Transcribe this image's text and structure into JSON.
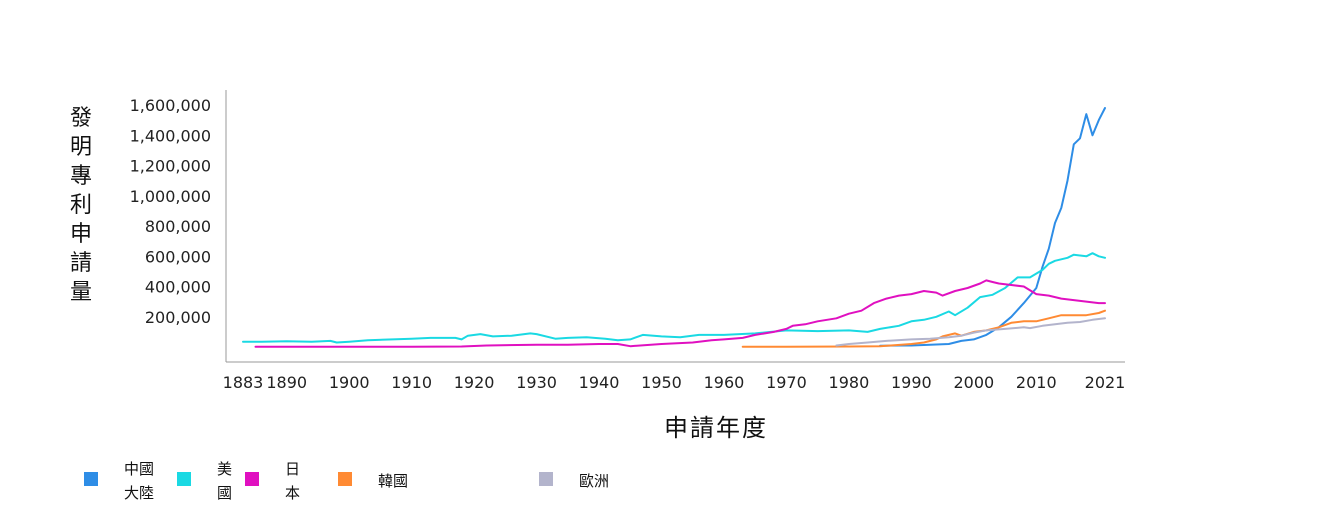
{
  "chart_data": {
    "type": "line",
    "title": "",
    "ylabel": "發明專利申請量",
    "xlabel": "申請年度",
    "xlim": [
      1883,
      2021
    ],
    "ylim": [
      0,
      1600000
    ],
    "x_ticks": [
      1883,
      1890,
      1900,
      1910,
      1920,
      1930,
      1940,
      1950,
      1960,
      1970,
      1980,
      1990,
      2000,
      2010,
      2021
    ],
    "y_ticks": [
      "200,000",
      "400,000",
      "600,000",
      "800,000",
      "1,000,000",
      "1,200,000",
      "1,400,000",
      "1,600,000"
    ],
    "y_tick_values": [
      200000,
      400000,
      600000,
      800000,
      1000000,
      1200000,
      1400000,
      1600000
    ],
    "legend_position": "bottom-left",
    "series": [
      {
        "name": "中國大陸",
        "legend_lines": [
          "中國",
          "大陸"
        ],
        "color": "#2e8de6",
        "points": [
          [
            1985,
            8000
          ],
          [
            1988,
            10000
          ],
          [
            1990,
            10000
          ],
          [
            1993,
            15000
          ],
          [
            1996,
            20000
          ],
          [
            1998,
            40000
          ],
          [
            2000,
            50000
          ],
          [
            2002,
            80000
          ],
          [
            2004,
            130000
          ],
          [
            2006,
            200000
          ],
          [
            2008,
            290000
          ],
          [
            2010,
            390000
          ],
          [
            2011,
            530000
          ],
          [
            2012,
            650000
          ],
          [
            2013,
            820000
          ],
          [
            2014,
            920000
          ],
          [
            2015,
            1100000
          ],
          [
            2016,
            1340000
          ],
          [
            2017,
            1380000
          ],
          [
            2018,
            1540000
          ],
          [
            2019,
            1400000
          ],
          [
            2020,
            1500000
          ],
          [
            2021,
            1580000
          ]
        ]
      },
      {
        "name": "美國",
        "legend_lines": [
          "美",
          "國"
        ],
        "color": "#1ad9e3",
        "points": [
          [
            1883,
            35000
          ],
          [
            1886,
            35000
          ],
          [
            1890,
            38000
          ],
          [
            1894,
            35000
          ],
          [
            1897,
            40000
          ],
          [
            1898,
            30000
          ],
          [
            1900,
            35000
          ],
          [
            1903,
            45000
          ],
          [
            1910,
            55000
          ],
          [
            1913,
            60000
          ],
          [
            1917,
            60000
          ],
          [
            1918,
            50000
          ],
          [
            1919,
            75000
          ],
          [
            1921,
            85000
          ],
          [
            1923,
            70000
          ],
          [
            1926,
            75000
          ],
          [
            1929,
            90000
          ],
          [
            1930,
            85000
          ],
          [
            1933,
            55000
          ],
          [
            1935,
            60000
          ],
          [
            1938,
            65000
          ],
          [
            1941,
            55000
          ],
          [
            1943,
            45000
          ],
          [
            1945,
            50000
          ],
          [
            1947,
            80000
          ],
          [
            1950,
            70000
          ],
          [
            1953,
            65000
          ],
          [
            1956,
            80000
          ],
          [
            1960,
            80000
          ],
          [
            1965,
            90000
          ],
          [
            1970,
            110000
          ],
          [
            1975,
            105000
          ],
          [
            1980,
            110000
          ],
          [
            1983,
            100000
          ],
          [
            1985,
            120000
          ],
          [
            1988,
            140000
          ],
          [
            1990,
            170000
          ],
          [
            1992,
            180000
          ],
          [
            1994,
            200000
          ],
          [
            1996,
            235000
          ],
          [
            1997,
            210000
          ],
          [
            1999,
            260000
          ],
          [
            2001,
            330000
          ],
          [
            2003,
            345000
          ],
          [
            2005,
            390000
          ],
          [
            2007,
            460000
          ],
          [
            2009,
            460000
          ],
          [
            2011,
            510000
          ],
          [
            2012,
            550000
          ],
          [
            2013,
            570000
          ],
          [
            2015,
            590000
          ],
          [
            2016,
            610000
          ],
          [
            2018,
            600000
          ],
          [
            2019,
            620000
          ],
          [
            2020,
            600000
          ],
          [
            2021,
            590000
          ]
        ]
      },
      {
        "name": "日本",
        "legend_lines": [
          "日",
          "本"
        ],
        "color": "#e010c0",
        "points": [
          [
            1885,
            1000
          ],
          [
            1900,
            1000
          ],
          [
            1910,
            2000
          ],
          [
            1918,
            3000
          ],
          [
            1922,
            10000
          ],
          [
            1930,
            15000
          ],
          [
            1935,
            15000
          ],
          [
            1940,
            20000
          ],
          [
            1943,
            20000
          ],
          [
            1945,
            5000
          ],
          [
            1950,
            20000
          ],
          [
            1955,
            30000
          ],
          [
            1958,
            45000
          ],
          [
            1960,
            50000
          ],
          [
            1963,
            60000
          ],
          [
            1965,
            80000
          ],
          [
            1968,
            100000
          ],
          [
            1970,
            120000
          ],
          [
            1971,
            140000
          ],
          [
            1973,
            150000
          ],
          [
            1975,
            170000
          ],
          [
            1978,
            190000
          ],
          [
            1980,
            220000
          ],
          [
            1982,
            240000
          ],
          [
            1984,
            290000
          ],
          [
            1986,
            320000
          ],
          [
            1988,
            340000
          ],
          [
            1990,
            350000
          ],
          [
            1992,
            370000
          ],
          [
            1994,
            360000
          ],
          [
            1995,
            340000
          ],
          [
            1997,
            370000
          ],
          [
            1999,
            390000
          ],
          [
            2001,
            420000
          ],
          [
            2002,
            440000
          ],
          [
            2003,
            430000
          ],
          [
            2004,
            420000
          ],
          [
            2006,
            410000
          ],
          [
            2008,
            400000
          ],
          [
            2010,
            350000
          ],
          [
            2012,
            340000
          ],
          [
            2014,
            320000
          ],
          [
            2016,
            310000
          ],
          [
            2018,
            300000
          ],
          [
            2020,
            290000
          ],
          [
            2021,
            290000
          ]
        ]
      },
      {
        "name": "韓國",
        "legend_lines": [
          "韓國"
        ],
        "color": "#ff8a33",
        "points": [
          [
            1963,
            1000
          ],
          [
            1970,
            1000
          ],
          [
            1980,
            3000
          ],
          [
            1985,
            5000
          ],
          [
            1990,
            20000
          ],
          [
            1992,
            30000
          ],
          [
            1994,
            50000
          ],
          [
            1995,
            70000
          ],
          [
            1997,
            90000
          ],
          [
            1998,
            75000
          ],
          [
            2000,
            100000
          ],
          [
            2002,
            110000
          ],
          [
            2004,
            130000
          ],
          [
            2006,
            160000
          ],
          [
            2008,
            170000
          ],
          [
            2010,
            170000
          ],
          [
            2012,
            190000
          ],
          [
            2014,
            210000
          ],
          [
            2016,
            210000
          ],
          [
            2018,
            210000
          ],
          [
            2020,
            225000
          ],
          [
            2021,
            240000
          ]
        ]
      },
      {
        "name": "歐洲",
        "legend_lines": [
          "歐洲"
        ],
        "color": "#b3b4cc",
        "points": [
          [
            1978,
            10000
          ],
          [
            1980,
            20000
          ],
          [
            1983,
            30000
          ],
          [
            1986,
            40000
          ],
          [
            1990,
            50000
          ],
          [
            1993,
            55000
          ],
          [
            1996,
            65000
          ],
          [
            1998,
            75000
          ],
          [
            2000,
            95000
          ],
          [
            2002,
            110000
          ],
          [
            2005,
            120000
          ],
          [
            2008,
            130000
          ],
          [
            2009,
            125000
          ],
          [
            2011,
            140000
          ],
          [
            2013,
            150000
          ],
          [
            2015,
            160000
          ],
          [
            2017,
            165000
          ],
          [
            2019,
            180000
          ],
          [
            2021,
            190000
          ]
        ]
      }
    ]
  }
}
